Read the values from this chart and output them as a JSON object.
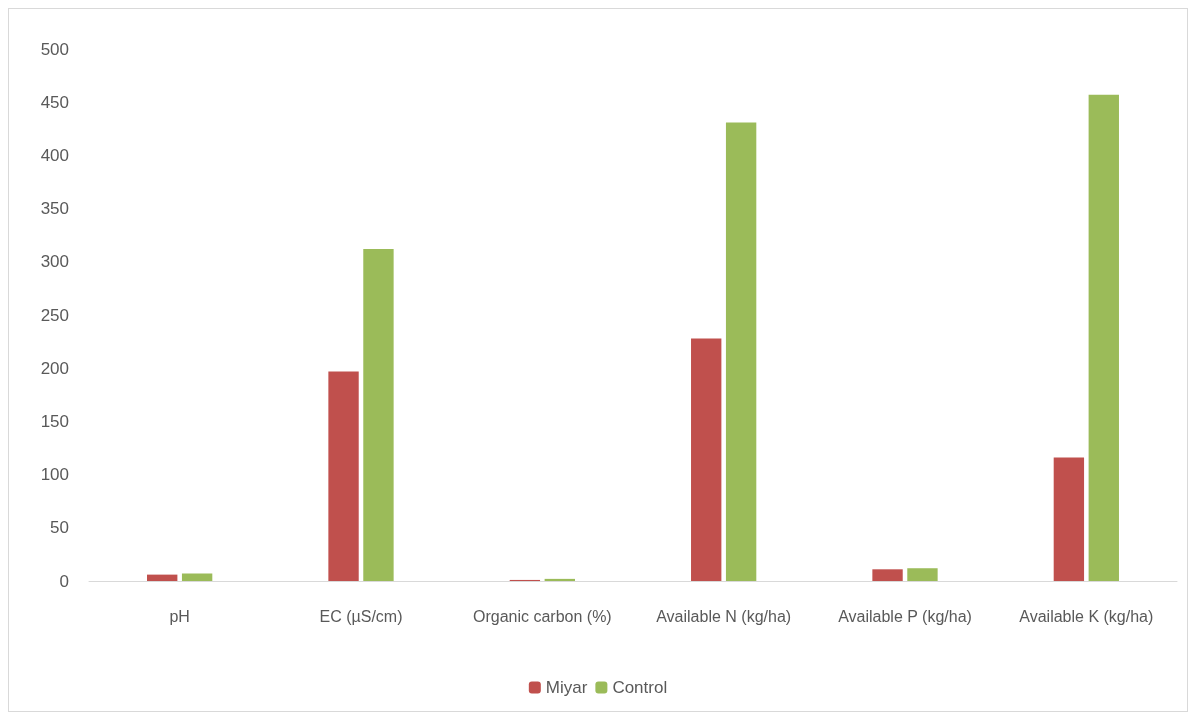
{
  "chart_data": {
    "type": "bar",
    "categories": [
      "pH",
      "EC (µS/cm)",
      "Organic carbon (%)",
      "Available N (kg/ha)",
      "Available P (kg/ha)",
      "Available K (kg/ha)"
    ],
    "series": [
      {
        "name": "Miyar",
        "color": "#c0504d",
        "values": [
          6,
          197,
          1,
          228,
          11,
          116
        ]
      },
      {
        "name": "Control",
        "color": "#9bbb59",
        "values": [
          7,
          312,
          2,
          431,
          12,
          457
        ]
      }
    ],
    "ylim": [
      0,
      500
    ],
    "yticks": [
      0,
      50,
      100,
      150,
      200,
      250,
      300,
      350,
      400,
      450,
      500
    ],
    "grid": false,
    "legend": "bottom"
  }
}
